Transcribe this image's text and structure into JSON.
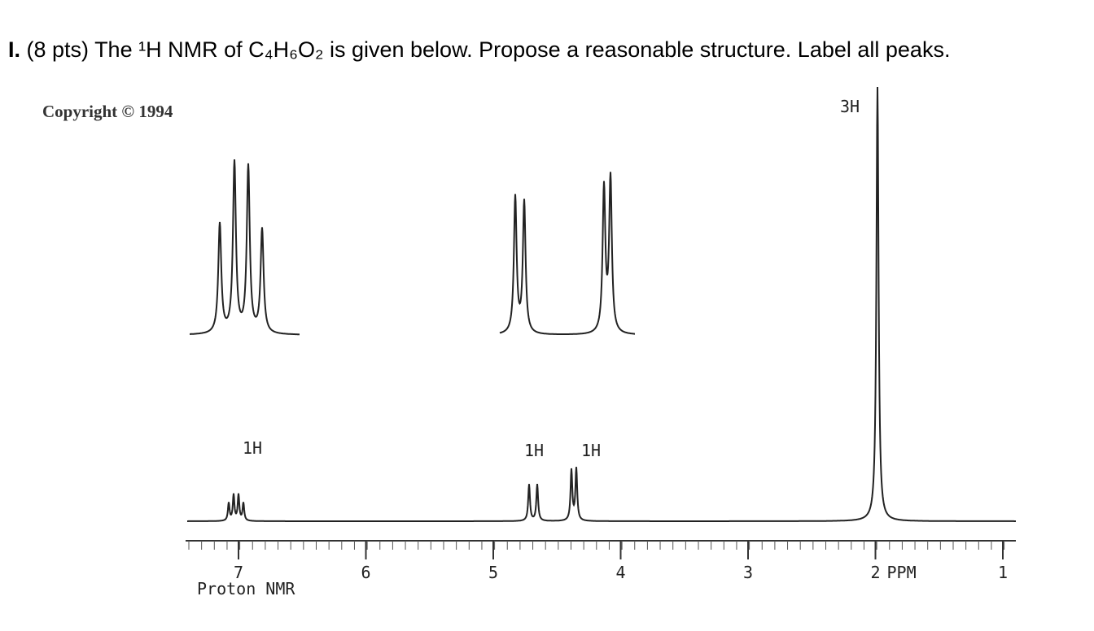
{
  "question": {
    "number": "I.",
    "text": "(8 pts) The ¹H NMR of C₄H₆O₂ is given below. Propose a reasonable structure. Label all peaks."
  },
  "spectrum": {
    "copyright": "Copyright © 1994",
    "integrations": [
      "1H",
      "1H",
      "1H",
      "3H"
    ],
    "axis": {
      "ticks": [
        7,
        6,
        5,
        4,
        3,
        2,
        1
      ],
      "unit": "PPM"
    },
    "caption": "Proton NMR"
  }
}
